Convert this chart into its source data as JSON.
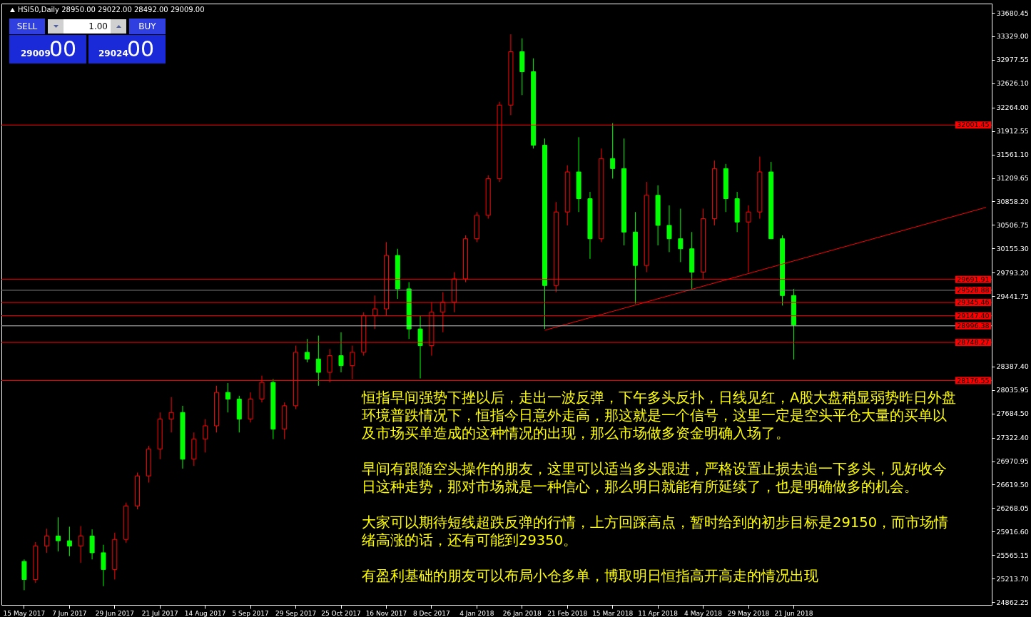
{
  "chart_data": {
    "type": "candlestick",
    "title": "HSI50,Daily  28950.00 29022.00 28492.00 29009.00",
    "categories": [
      "15 May 2017",
      null,
      null,
      null,
      "7 Jun 2017",
      null,
      null,
      null,
      "29 Jun 2017",
      null,
      null,
      null,
      "21 Jul 2017",
      null,
      null,
      null,
      "14 Aug 2017",
      null,
      null,
      null,
      "5 Sep 2017",
      null,
      null,
      null,
      "29 Sep 2017",
      null,
      null,
      null,
      "25 Oct 2017",
      null,
      null,
      null,
      "16 Nov 2017",
      null,
      null,
      null,
      "8 Dec 2017",
      null,
      null,
      null,
      "4 Jan 2018",
      null,
      null,
      null,
      "26 Jan 2018",
      null,
      null,
      null,
      "21 Feb 2018",
      null,
      null,
      null,
      "15 Mar 2018",
      null,
      null,
      null,
      "11 Apr 2018",
      null,
      null,
      null,
      "4 May 2018",
      null,
      null,
      null,
      "29 May 2018",
      null,
      null,
      null,
      "21 Jun 2018",
      null,
      null,
      null,
      null,
      null,
      null,
      null,
      null,
      null,
      null,
      null,
      null,
      null,
      null,
      null,
      null,
      null
    ],
    "ohlc": [
      [
        25470,
        25500,
        25040,
        25200
      ],
      [
        25200,
        25760,
        25150,
        25700
      ],
      [
        25700,
        25960,
        25600,
        25850
      ],
      [
        25850,
        26130,
        25620,
        25780
      ],
      [
        25780,
        25990,
        25550,
        25700
      ],
      [
        25700,
        26000,
        25450,
        25850
      ],
      [
        25850,
        25950,
        25500,
        25600
      ],
      [
        25600,
        25720,
        25100,
        25350
      ],
      [
        25350,
        25900,
        25200,
        25800
      ],
      [
        25800,
        26350,
        25750,
        26300
      ],
      [
        26300,
        26800,
        26250,
        26750
      ],
      [
        26750,
        27200,
        26650,
        27150
      ],
      [
        27150,
        27700,
        27000,
        27600
      ],
      [
        27600,
        27930,
        27400,
        27700
      ],
      [
        27700,
        27800,
        26860,
        27000
      ],
      [
        27000,
        27400,
        26900,
        27300
      ],
      [
        27300,
        27600,
        27100,
        27500
      ],
      [
        27500,
        28100,
        27400,
        28000
      ],
      [
        28000,
        28140,
        27700,
        27900
      ],
      [
        27900,
        27950,
        27400,
        27600
      ],
      [
        27600,
        28000,
        27550,
        27900
      ],
      [
        27900,
        28250,
        27850,
        28150
      ],
      [
        28150,
        28200,
        27300,
        27450
      ],
      [
        27450,
        27850,
        27300,
        27800
      ],
      [
        27800,
        28700,
        27750,
        28600
      ],
      [
        28600,
        28800,
        28450,
        28500
      ],
      [
        28500,
        28850,
        28100,
        28300
      ],
      [
        28300,
        28650,
        28150,
        28550
      ],
      [
        28550,
        28900,
        28300,
        28400
      ],
      [
        28400,
        28700,
        28200,
        28600
      ],
      [
        28600,
        29200,
        28550,
        29150
      ],
      [
        29150,
        29450,
        28950,
        29250
      ],
      [
        29250,
        30250,
        29150,
        30050
      ],
      [
        30050,
        30150,
        29400,
        29550
      ],
      [
        29550,
        29650,
        28800,
        28950
      ],
      [
        28950,
        29150,
        28210,
        28700
      ],
      [
        28700,
        29350,
        28550,
        29200
      ],
      [
        29200,
        29500,
        28900,
        29350
      ],
      [
        29350,
        29800,
        29200,
        29700
      ],
      [
        29700,
        30350,
        29650,
        30300
      ],
      [
        30300,
        30700,
        30250,
        30650
      ],
      [
        30650,
        31250,
        30600,
        31200
      ],
      [
        31200,
        32350,
        31150,
        32300
      ],
      [
        32300,
        33360,
        32150,
        33100
      ],
      [
        33100,
        33300,
        32450,
        32800
      ],
      [
        32800,
        33000,
        31650,
        31700
      ],
      [
        31700,
        31800,
        28950,
        29600
      ],
      [
        29600,
        30850,
        29500,
        30700
      ],
      [
        30700,
        31400,
        30500,
        31300
      ],
      [
        31300,
        31820,
        30700,
        30900
      ],
      [
        30900,
        31000,
        30000,
        30300
      ],
      [
        30300,
        31650,
        30250,
        31500
      ],
      [
        31500,
        32030,
        31200,
        31350
      ],
      [
        31350,
        31800,
        30200,
        30400
      ],
      [
        30400,
        30700,
        29330,
        29900
      ],
      [
        29900,
        31150,
        29800,
        30950
      ],
      [
        30950,
        31100,
        30200,
        30500
      ],
      [
        30500,
        30800,
        30100,
        30300
      ],
      [
        30300,
        30750,
        29950,
        30150
      ],
      [
        30150,
        30400,
        29550,
        29800
      ],
      [
        29800,
        30750,
        29700,
        30600
      ],
      [
        30600,
        31470,
        30500,
        31350
      ],
      [
        31350,
        31420,
        30700,
        30900
      ],
      [
        30900,
        31000,
        30400,
        30550
      ],
      [
        30550,
        30800,
        29800,
        30700
      ],
      [
        30700,
        31530,
        30600,
        31300
      ],
      [
        31300,
        31450,
        30300,
        30300
      ],
      [
        30300,
        30350,
        29300,
        29450
      ],
      [
        29450,
        29550,
        28492,
        29009
      ],
      null,
      null,
      null,
      null,
      null,
      null,
      null,
      null,
      null,
      null,
      null,
      null,
      null,
      null,
      null,
      null,
      null
    ],
    "colors": [
      "#00ff00",
      "#ff0000",
      "#ff0000",
      "#00ff00",
      "#00ff00",
      "#ff0000",
      "#00ff00",
      "#00ff00",
      "#ff0000",
      "#ff0000",
      "#ff0000",
      "#ff0000",
      "#ff0000",
      "#ff0000",
      "#00ff00",
      "#ff0000",
      "#ff0000",
      "#ff0000",
      "#00ff00",
      "#00ff00",
      "#ff0000",
      "#ff0000",
      "#00ff00",
      "#ff0000",
      "#ff0000",
      "#00ff00",
      "#00ff00",
      "#ff0000",
      "#00ff00",
      "#ff0000",
      "#ff0000",
      "#ff0000",
      "#ff0000",
      "#00ff00",
      "#00ff00",
      "#00ff00",
      "#ff0000",
      "#ff0000",
      "#ff0000",
      "#ff0000",
      "#ff0000",
      "#ff0000",
      "#ff0000",
      "#ff0000",
      "#00ff00",
      "#00ff00",
      "#00ff00",
      "#ff0000",
      "#ff0000",
      "#00ff00",
      "#00ff00",
      "#ff0000",
      "#00ff00",
      "#00ff00",
      "#00ff00",
      "#ff0000",
      "#00ff00",
      "#00ff00",
      "#00ff00",
      "#00ff00",
      "#ff0000",
      "#ff0000",
      "#00ff00",
      "#00ff00",
      "#ff0000",
      "#ff0000",
      "#00ff00",
      "#00ff00",
      "#00ff00",
      null,
      null,
      null,
      null,
      null,
      null,
      null,
      null,
      null,
      null,
      null,
      null,
      null,
      null,
      null,
      null,
      null
    ],
    "series": [
      {
        "type": "line",
        "color": "#ff0000",
        "values": [
          null,
          null,
          null,
          null,
          null,
          null,
          null,
          null,
          null,
          null,
          null,
          null,
          null,
          null,
          null,
          null,
          null,
          null,
          null,
          null,
          null,
          null,
          null,
          null,
          null,
          null,
          null,
          null,
          null,
          null,
          null,
          null,
          null,
          null,
          null,
          null,
          null,
          null,
          null,
          null,
          null,
          null,
          null,
          null,
          null,
          null,
          28930,
          null,
          null,
          null,
          null,
          null,
          null,
          null,
          null,
          null,
          null,
          null,
          null,
          null,
          null,
          null,
          null,
          null,
          null,
          null,
          null,
          null,
          null,
          null,
          null,
          null,
          null,
          null,
          null,
          null,
          null,
          null,
          null,
          null,
          null,
          null,
          null,
          null,
          null,
          30770
        ]
      }
    ],
    "ylim": [
      24820,
      33820
    ],
    "yticks": [
      {
        "value": 24862.25,
        "label": "24862.25"
      },
      {
        "value": 25213.7,
        "label": "25213.70"
      },
      {
        "value": 25565.15,
        "label": "25565.15"
      },
      {
        "value": 25916.6,
        "label": "25916.60"
      },
      {
        "value": 26268.05,
        "label": "26268.05"
      },
      {
        "value": 26619.5,
        "label": "26619.50"
      },
      {
        "value": 26970.95,
        "label": "26970.95"
      },
      {
        "value": 27322.4,
        "label": "27322.40"
      },
      {
        "value": 27684.5,
        "label": "27684.50"
      },
      {
        "value": 28035.95,
        "label": "28035.95"
      },
      {
        "value": 28387.4,
        "label": "28387.40"
      },
      {
        "value": 29441.75,
        "label": "29441.75"
      },
      {
        "value": 29793.2,
        "label": "29793.20"
      },
      {
        "value": 30155.3,
        "label": "30155.30"
      },
      {
        "value": 30506.75,
        "label": "30506.75"
      },
      {
        "value": 30858.2,
        "label": "30858.20"
      },
      {
        "value": 31209.65,
        "label": "31209.65"
      },
      {
        "value": 31561.1,
        "label": "31561.10"
      },
      {
        "value": 31912.55,
        "label": "31912.55"
      },
      {
        "value": 32264,
        "label": "32264.00"
      },
      {
        "value": 32626.1,
        "label": "32626.10"
      },
      {
        "value": 32977.55,
        "label": "32977.55"
      },
      {
        "value": 33329,
        "label": "33329.00"
      },
      {
        "value": 33680.45,
        "label": "33680.45"
      }
    ],
    "grid": false,
    "ref_lines": [
      {
        "axis": "y",
        "value": 32001.45,
        "label": "32001.45",
        "color": "#ff0000"
      },
      {
        "axis": "y",
        "value": 29691.91,
        "label": "29691.91",
        "color": "#ff0000"
      },
      {
        "axis": "y",
        "value": 29528.88,
        "label": "29528.88",
        "color": "#808080"
      },
      {
        "axis": "y",
        "value": 29345.46,
        "label": "29345.46",
        "color": "#ff0000"
      },
      {
        "axis": "y",
        "value": 29147.4,
        "label": "29147.40",
        "color": "#ff0000"
      },
      {
        "axis": "y",
        "value": 28996.38,
        "label": "28996.38",
        "color": "#c0c0c0"
      },
      {
        "axis": "y",
        "value": 28748.27,
        "label": "28748.27",
        "color": "#ff0000"
      },
      {
        "axis": "y",
        "value": 28176.55,
        "label": "28176.55",
        "color": "#ff0000"
      }
    ],
    "annotations": [
      "SELL",
      "1.00",
      "BUY",
      "29009",
      "00",
      "29024",
      "00",
      "恒指早间强势下挫以后，走出一波反弹，下午多头反扑，日线见红，A股大盘稍显弱势昨日外盘环境普跌情况下，恒指今日意外走高，那这就是一个信号，这里一定是空头平仓大量的买单以及市场买单造成的这种情况的出现，那么市场做多资金明确入场了。",
      "早间有跟随空头操作的朋友，这里可以适当多头跟进，严格设置止损去追一下多头，见好收今日这种走势，那对市场就是一种信心，那么明日就能有所延续了，也是明确做多的机会。",
      "大家可以期待短线超跌反弹的行情，上方回踩高点，暂时给到的初步目标是29150，而市场情绪高涨的话，还有可能到29350。",
      "有盈利基础的朋友可以布局小仓多单，博取明日恒指高开高走的情况出现"
    ]
  }
}
